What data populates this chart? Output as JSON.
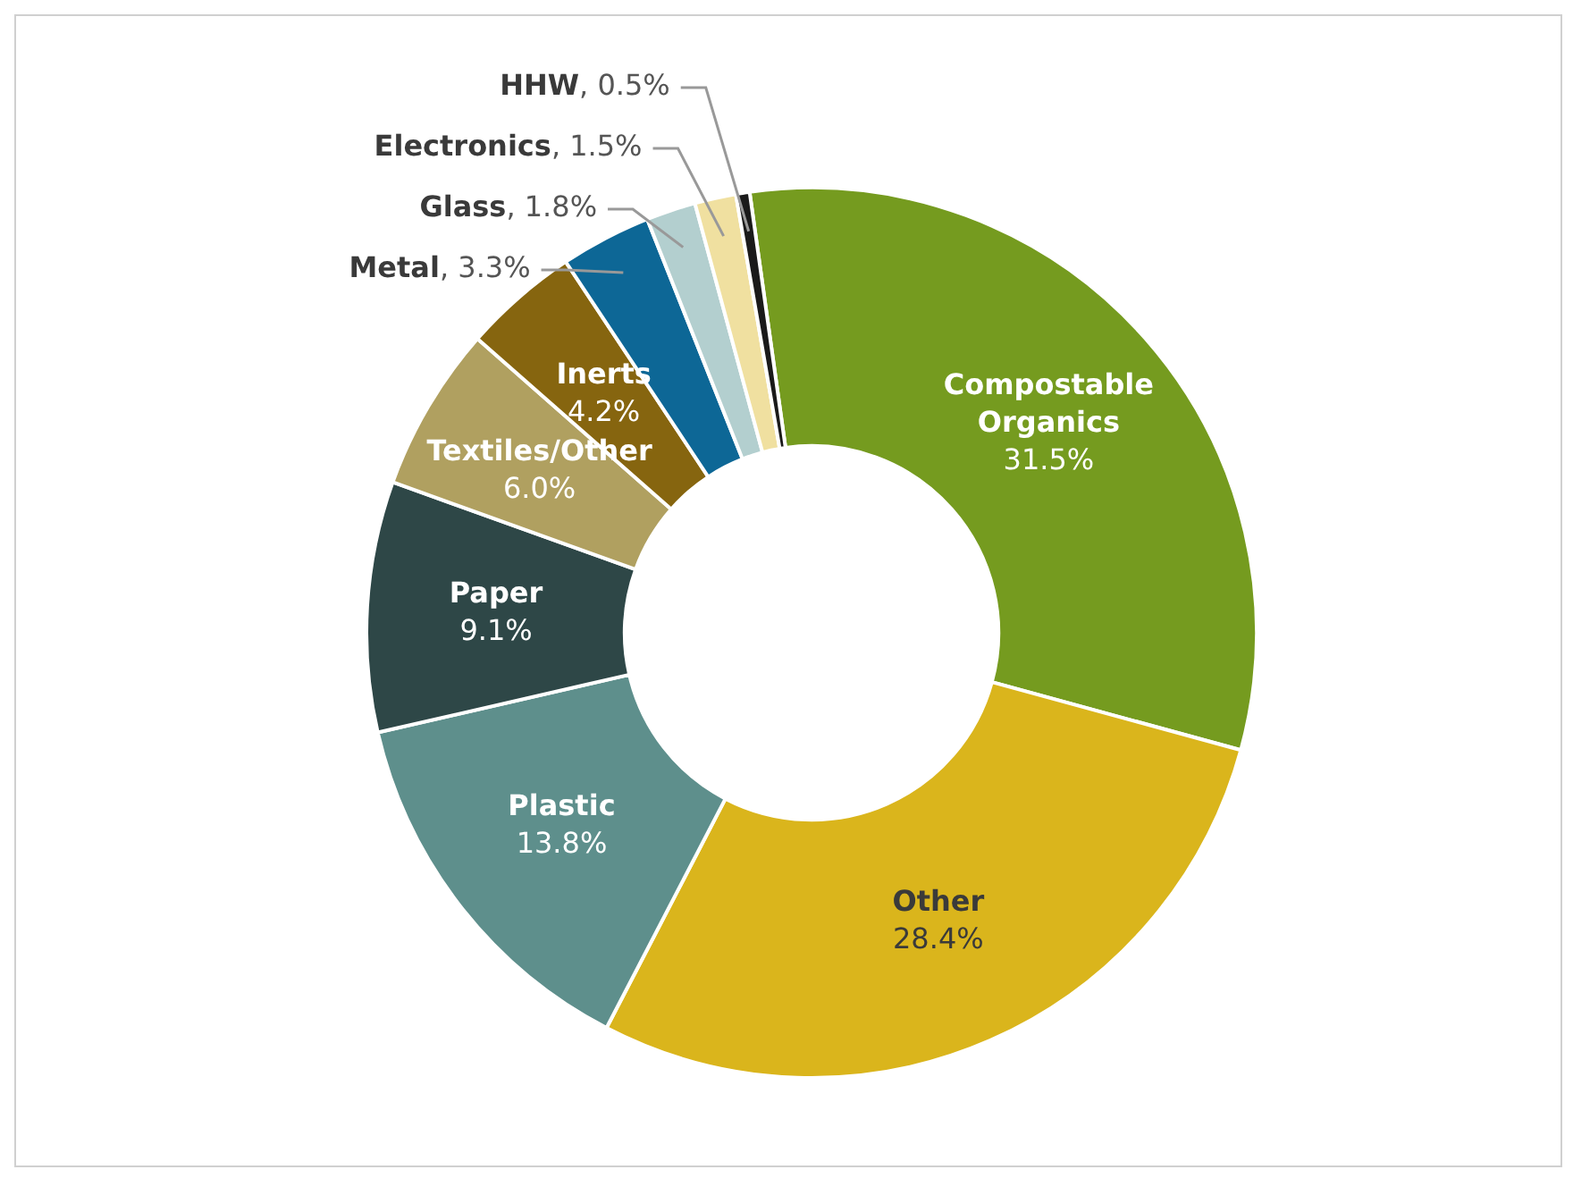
{
  "chart_data": {
    "type": "donut",
    "categories": [
      "Compostable Organics",
      "Other",
      "Plastic",
      "Paper",
      "Textiles/Other",
      "Inerts",
      "Metal",
      "Glass",
      "Electronics",
      "HHW"
    ],
    "values": [
      31.5,
      28.4,
      13.8,
      9.1,
      6.0,
      4.2,
      3.3,
      1.8,
      1.5,
      0.5
    ],
    "colors": [
      "#759b1f",
      "#dab51c",
      "#5e8f8c",
      "#2e4747",
      "#b0a060",
      "#86650f",
      "#0d6796",
      "#b3cfcf",
      "#f0e0a0",
      "#1a1a1a"
    ],
    "value_labels": [
      "31.5%",
      "28.4%",
      "13.8%",
      "9.1%",
      "6.0%",
      "4.2%",
      ", 3.3%",
      ", 1.8%",
      ", 1.5%",
      ", 0.5%"
    ],
    "legend": false
  }
}
